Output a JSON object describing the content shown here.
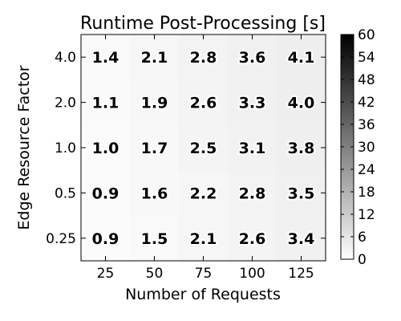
{
  "chart_data": {
    "type": "heatmap",
    "title": "Runtime Post-Processing [s]",
    "xlabel": "Number of Requests",
    "ylabel": "Edge Resource Factor",
    "x_categories": [
      "25",
      "50",
      "75",
      "100",
      "125"
    ],
    "y_categories": [
      "0.25",
      "0.5",
      "1.0",
      "2.0",
      "4.0"
    ],
    "values": [
      [
        0.9,
        1.5,
        2.1,
        2.6,
        3.4
      ],
      [
        0.9,
        1.6,
        2.2,
        2.8,
        3.5
      ],
      [
        1.0,
        1.7,
        2.5,
        3.1,
        3.8
      ],
      [
        1.1,
        1.9,
        2.6,
        3.3,
        4.0
      ],
      [
        1.4,
        2.1,
        2.8,
        3.6,
        4.1
      ]
    ],
    "value_labels": [
      [
        "0.9",
        "1.5",
        "2.1",
        "2.6",
        "3.4"
      ],
      [
        "0.9",
        "1.6",
        "2.2",
        "2.8",
        "3.5"
      ],
      [
        "1.0",
        "1.7",
        "2.5",
        "3.1",
        "3.8"
      ],
      [
        "1.1",
        "1.9",
        "2.6",
        "3.3",
        "4.0"
      ],
      [
        "1.4",
        "2.1",
        "2.8",
        "3.6",
        "4.1"
      ]
    ],
    "colorbar": {
      "min": 0,
      "max": 60,
      "ticks": [
        "0",
        "6",
        "12",
        "18",
        "24",
        "30",
        "36",
        "42",
        "48",
        "54",
        "60"
      ],
      "colormap": "gray_r"
    }
  }
}
